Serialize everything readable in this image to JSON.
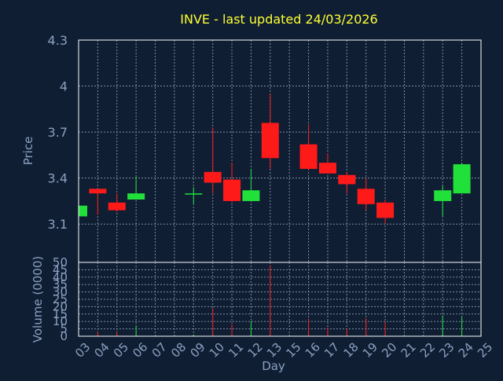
{
  "chart_data": {
    "type": "candlestick",
    "title": "INVE - last updated 24/03/2026",
    "xlabel": "Day",
    "ylabel_price": "Price",
    "ylabel_volume": "Volume (0000)",
    "x_ticks": [
      "03",
      "04",
      "05",
      "06",
      "07",
      "08",
      "09",
      "10",
      "11",
      "12",
      "13",
      "15",
      "16",
      "17",
      "18",
      "19",
      "20",
      "21",
      "22",
      "23",
      "24",
      "25"
    ],
    "price_ylim": [
      2.85,
      4.3
    ],
    "price_ticks": [
      "3.1",
      "3.4",
      "3.7",
      "4",
      "4.3"
    ],
    "price_tick_values": [
      3.1,
      3.4,
      3.7,
      4.0,
      4.3
    ],
    "volume_ylim": [
      0,
      50
    ],
    "volume_ticks": [
      "0",
      "5",
      "10",
      "15",
      "20",
      "25",
      "30",
      "35",
      "40",
      "45",
      "50"
    ],
    "volume_tick_values": [
      0,
      5,
      10,
      15,
      20,
      25,
      30,
      35,
      40,
      45,
      50
    ],
    "grid": true,
    "colors": {
      "background": "#0f1e33",
      "up": "#22e03a",
      "down": "#ff1a1a",
      "title": "#ffff33",
      "axis_label": "#8aa0c0",
      "tick_label": "#8aa0c0",
      "frame": "#ffffff",
      "grid": "#7f8da0"
    },
    "candles": [
      {
        "x": "03",
        "open": 3.15,
        "high": 3.22,
        "low": 3.15,
        "close": 3.22,
        "volume": 1
      },
      {
        "x": "04",
        "open": 3.33,
        "high": 3.33,
        "low": 3.16,
        "close": 3.3,
        "volume": 3
      },
      {
        "x": "05",
        "open": 3.24,
        "high": 3.3,
        "low": 3.18,
        "close": 3.19,
        "volume": 3
      },
      {
        "x": "06",
        "open": 3.26,
        "high": 3.41,
        "low": 3.26,
        "close": 3.3,
        "volume": 7
      },
      {
        "x": "09",
        "open": 3.3,
        "high": 3.34,
        "low": 3.23,
        "close": 3.3,
        "volume": 1
      },
      {
        "x": "10",
        "open": 3.44,
        "high": 3.73,
        "low": 3.3,
        "close": 3.37,
        "volume": 19
      },
      {
        "x": "11",
        "open": 3.39,
        "high": 3.5,
        "low": 3.24,
        "close": 3.25,
        "volume": 8
      },
      {
        "x": "12",
        "open": 3.25,
        "high": 3.46,
        "low": 3.25,
        "close": 3.32,
        "volume": 10
      },
      {
        "x": "13",
        "open": 3.76,
        "high": 3.95,
        "low": 3.46,
        "close": 3.53,
        "volume": 48
      },
      {
        "x": "16",
        "open": 3.62,
        "high": 3.75,
        "low": 3.45,
        "close": 3.46,
        "volume": 12
      },
      {
        "x": "17",
        "open": 3.5,
        "high": 3.56,
        "low": 3.43,
        "close": 3.43,
        "volume": 6
      },
      {
        "x": "18",
        "open": 3.42,
        "high": 3.44,
        "low": 3.3,
        "close": 3.36,
        "volume": 5
      },
      {
        "x": "19",
        "open": 3.33,
        "high": 3.4,
        "low": 3.19,
        "close": 3.23,
        "volume": 12
      },
      {
        "x": "20",
        "open": 3.24,
        "high": 3.26,
        "low": 3.1,
        "close": 3.14,
        "volume": 10
      },
      {
        "x": "23",
        "open": 3.25,
        "high": 3.35,
        "low": 3.15,
        "close": 3.32,
        "volume": 14
      },
      {
        "x": "24",
        "open": 3.3,
        "high": 3.5,
        "low": 3.3,
        "close": 3.49,
        "volume": 13
      }
    ]
  }
}
